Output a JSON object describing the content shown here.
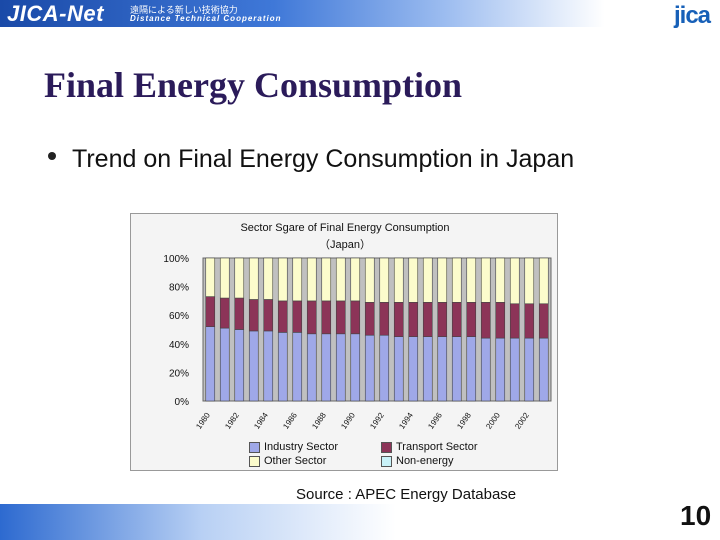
{
  "header": {
    "brand": "JICA-Net",
    "japanese_tagline": "遠隔による新しい技術協力",
    "english_tagline": "Distance Technical Cooperation",
    "logo": "jica"
  },
  "slide": {
    "title": "Final Energy Consumption",
    "bullet": "Trend on Final Energy Consumption in Japan",
    "source": "Source : APEC Energy Database",
    "page_number": "10"
  },
  "colors": {
    "industry": "#9fa8e8",
    "transport": "#8c3458",
    "other": "#fcfccc",
    "non_energy": "#c9f2f8",
    "title": "#2b1b5a",
    "brand_blue": "#1760b8"
  },
  "chart_data": {
    "type": "bar",
    "stacked": true,
    "title": "Sector Sgare of Final Energy Consumption",
    "subtitle": "（Japan）",
    "ylim": [
      0,
      100
    ],
    "y_ticks": [
      "0%",
      "20%",
      "40%",
      "60%",
      "80%",
      "100%"
    ],
    "x_tick_labels": [
      "1980",
      "1982",
      "1984",
      "1986",
      "1988",
      "1990",
      "1992",
      "1994",
      "1996",
      "1998",
      "2000",
      "2002"
    ],
    "categories": [
      "1980",
      "1981",
      "1982",
      "1983",
      "1984",
      "1985",
      "1986",
      "1987",
      "1988",
      "1989",
      "1990",
      "1991",
      "1992",
      "1993",
      "1994",
      "1995",
      "1996",
      "1997",
      "1998",
      "1999",
      "2000",
      "2001",
      "2002",
      "2003"
    ],
    "grid": false,
    "legend_position": "bottom",
    "series": [
      {
        "name": "Industry Sector",
        "color": "#9fa8e8",
        "values": [
          52,
          51,
          50,
          49,
          49,
          48,
          48,
          47,
          47,
          47,
          47,
          46,
          46,
          45,
          45,
          45,
          45,
          45,
          45,
          44,
          44,
          44,
          44,
          44
        ]
      },
      {
        "name": "Transport Sector",
        "color": "#8c3458",
        "values": [
          21,
          21,
          22,
          22,
          22,
          22,
          22,
          23,
          23,
          23,
          23,
          23,
          23,
          24,
          24,
          24,
          24,
          24,
          24,
          25,
          25,
          24,
          24,
          24
        ]
      },
      {
        "name": "Other Sector",
        "color": "#fcfccc",
        "values": [
          27,
          28,
          28,
          29,
          29,
          30,
          30,
          30,
          30,
          30,
          30,
          31,
          31,
          31,
          31,
          31,
          31,
          31,
          31,
          31,
          31,
          32,
          32,
          32
        ]
      },
      {
        "name": "Non-energy",
        "color": "#c9f2f8",
        "values": [
          0,
          0,
          0,
          0,
          0,
          0,
          0,
          0,
          0,
          0,
          0,
          0,
          0,
          0,
          0,
          0,
          0,
          0,
          0,
          0,
          0,
          0,
          0,
          0
        ]
      }
    ]
  }
}
